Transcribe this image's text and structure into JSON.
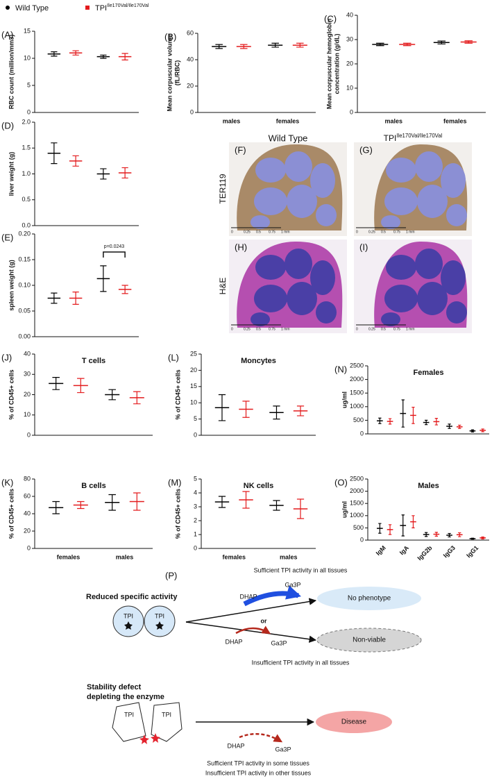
{
  "legend": [
    {
      "name": "Wild Type",
      "color": "#000000"
    },
    {
      "name": "TPI",
      "superscript": "Ile170Val/Ile170Val",
      "color": "#e31a1c"
    }
  ],
  "chart_data": [
    {
      "type": "dot",
      "label": "(A)",
      "ylabel": [
        "RBC count (million/mm3)"
      ],
      "categories": [
        null,
        null
      ],
      "series": [
        {
          "color": "#000000",
          "values": [
            10.8,
            10.3
          ],
          "errors": [
            0.4,
            0.3
          ]
        },
        {
          "color": "#e31a1c",
          "values": [
            11.0,
            10.3
          ],
          "errors": [
            0.4,
            0.6
          ]
        }
      ],
      "ylim": [
        0,
        15
      ],
      "yticks": [
        0,
        5,
        10,
        15
      ]
    },
    {
      "type": "dot",
      "label": "(B)",
      "ylabel": [
        "Mean corpuscular volume",
        "(fL/RBC)"
      ],
      "categories": [
        "males",
        "females"
      ],
      "series": [
        {
          "color": "#000000",
          "values": [
            50,
            51
          ],
          "errors": [
            1.5,
            1.5
          ]
        },
        {
          "color": "#e31a1c",
          "values": [
            50,
            51
          ],
          "errors": [
            1.5,
            1.5
          ]
        }
      ],
      "ylim": [
        0,
        60
      ],
      "yticks": [
        0,
        20,
        40,
        60
      ]
    },
    {
      "type": "dot",
      "label": "(C)",
      "ylabel": [
        "Mean corpuscular hemoglobin",
        "concentration (g/dL)"
      ],
      "categories": [
        "males",
        "females"
      ],
      "series": [
        {
          "color": "#000000",
          "values": [
            28,
            28.8
          ],
          "errors": [
            0.5,
            0.6
          ]
        },
        {
          "color": "#e31a1c",
          "values": [
            28,
            29
          ],
          "errors": [
            0.5,
            0.5
          ]
        }
      ],
      "ylim": [
        0,
        40
      ],
      "yticks": [
        0,
        10,
        20,
        30,
        40
      ]
    },
    {
      "type": "dot",
      "label": "(D)",
      "ylabel": [
        "liver weight (g)"
      ],
      "categories": [
        null,
        null
      ],
      "series": [
        {
          "color": "#000000",
          "values": [
            1.4,
            1.0
          ],
          "errors": [
            0.2,
            0.1
          ]
        },
        {
          "color": "#e31a1c",
          "values": [
            1.25,
            1.02
          ],
          "errors": [
            0.1,
            0.1
          ]
        }
      ],
      "ylim": [
        0,
        2
      ],
      "yticks": [
        {
          "value": 0,
          "label": "0.0"
        },
        {
          "value": 0.5,
          "label": "0.5"
        },
        {
          "value": 1,
          "label": "1.0"
        },
        {
          "value": 1.5,
          "label": "1.5"
        },
        {
          "value": 2,
          "label": "2.0"
        }
      ]
    },
    {
      "type": "dot",
      "label": "(E)",
      "ylabel": [
        "spleen weight (g)"
      ],
      "categories": [
        null,
        null
      ],
      "annotation": "p=0.0243",
      "series": [
        {
          "color": "#000000",
          "values": [
            0.075,
            0.113
          ],
          "errors": [
            0.01,
            0.025
          ]
        },
        {
          "color": "#e31a1c",
          "values": [
            0.075,
            0.092
          ],
          "errors": [
            0.012,
            0.008
          ]
        }
      ],
      "ylim": [
        0,
        0.2
      ],
      "yticks": [
        {
          "value": 0,
          "label": "0.00"
        },
        {
          "value": 0.05,
          "label": "0.05"
        },
        {
          "value": 0.1,
          "label": "0.10"
        },
        {
          "value": 0.15,
          "label": "0.15"
        },
        {
          "value": 0.2,
          "label": "0.20"
        }
      ]
    },
    {
      "type": "dot",
      "label": "(J)",
      "title": "T cells",
      "ylabel": [
        "% of CD45+ cells"
      ],
      "categories": [
        null,
        null
      ],
      "series": [
        {
          "color": "#000000",
          "values": [
            25.5,
            20
          ],
          "errors": [
            3,
            2.5
          ]
        },
        {
          "color": "#e31a1c",
          "values": [
            24.5,
            18.5
          ],
          "errors": [
            3.5,
            3
          ]
        }
      ],
      "ylim": [
        0,
        40
      ],
      "yticks": [
        0,
        10,
        20,
        30,
        40
      ]
    },
    {
      "type": "dot",
      "label": "(K)",
      "title": "B cells",
      "ylabel": [
        "% of CD45+ cells"
      ],
      "categories": [
        "females",
        "males"
      ],
      "series": [
        {
          "color": "#000000",
          "values": [
            47,
            53
          ],
          "errors": [
            7,
            9
          ]
        },
        {
          "color": "#e31a1c",
          "values": [
            50,
            54
          ],
          "errors": [
            4,
            10
          ]
        }
      ],
      "ylim": [
        0,
        80
      ],
      "yticks": [
        0,
        20,
        40,
        60,
        80
      ]
    },
    {
      "type": "dot",
      "label": "(L)",
      "title": "Moncytes",
      "ylabel": [
        "% of CD45+ cells"
      ],
      "categories": [
        null,
        null
      ],
      "series": [
        {
          "color": "#000000",
          "values": [
            8.5,
            7
          ],
          "errors": [
            4,
            2
          ]
        },
        {
          "color": "#e31a1c",
          "values": [
            8,
            7.5
          ],
          "errors": [
            2.5,
            1.5
          ]
        }
      ],
      "ylim": [
        0,
        25
      ],
      "yticks": [
        0,
        5,
        10,
        15,
        20,
        25
      ]
    },
    {
      "type": "dot",
      "label": "(M)",
      "title": "NK cells",
      "ylabel": [
        "% of CD45+ cells"
      ],
      "categories": [
        "females",
        "males"
      ],
      "series": [
        {
          "color": "#000000",
          "values": [
            3.35,
            3.1
          ],
          "errors": [
            0.4,
            0.35
          ]
        },
        {
          "color": "#e31a1c",
          "values": [
            3.5,
            2.85
          ],
          "errors": [
            0.6,
            0.7
          ]
        }
      ],
      "ylim": [
        0,
        5
      ],
      "yticks": [
        0,
        1,
        2,
        3,
        4,
        5
      ]
    },
    {
      "type": "dot",
      "label": "(N)",
      "title": "Females",
      "ylabel": [
        "ug/ml"
      ],
      "categories": [
        null,
        null,
        null,
        null,
        null
      ],
      "series": [
        {
          "color": "#000000",
          "values": [
            480,
            750,
            420,
            280,
            110
          ],
          "errors": [
            100,
            500,
            80,
            80,
            40
          ]
        },
        {
          "color": "#e31a1c",
          "values": [
            460,
            680,
            450,
            260,
            130
          ],
          "errors": [
            100,
            300,
            120,
            60,
            50
          ]
        }
      ],
      "ylim": [
        0,
        2500
      ],
      "yticks": [
        0,
        500,
        1000,
        1500,
        2000,
        2500
      ]
    },
    {
      "type": "dot",
      "label": "(O)",
      "title": "Males",
      "ylabel": [
        "ug/ml"
      ],
      "categories": [
        "IgM",
        "IgA",
        "IgG2b",
        "IgG3",
        "IgG1"
      ],
      "series": [
        {
          "color": "#000000",
          "values": [
            480,
            600,
            230,
            200,
            60
          ],
          "errors": [
            200,
            430,
            80,
            70,
            20
          ]
        },
        {
          "color": "#e31a1c",
          "values": [
            430,
            750,
            240,
            220,
            90
          ],
          "errors": [
            200,
            250,
            80,
            80,
            40
          ]
        }
      ],
      "ylim": [
        0,
        2500
      ],
      "yticks": [
        0,
        500,
        1000,
        1500,
        2000,
        2500
      ]
    }
  ],
  "histology": {
    "columns": [
      "Wild Type",
      {
        "name": "TPI",
        "superscript": "Ile170Val/Ile170Val"
      }
    ],
    "rows": [
      "TER119",
      "H&E"
    ],
    "panels": [
      "(F)",
      "(G)",
      "(H)",
      "(I)"
    ],
    "scale": [
      "0",
      "0.25",
      "0.5",
      "0.75",
      "1 mm"
    ]
  },
  "diagram": {
    "label": "(P)",
    "top": {
      "heading": "Reduced specific activity",
      "enzyme": [
        "TPI",
        "TPI"
      ],
      "note_above": "Sufficient TPI activity in all tissues",
      "substrate_1": "DHAP",
      "product_1": "Ga3P",
      "or": "or",
      "outcome_1": "No phenotype",
      "outcome_2": "Non-viable",
      "substrate_2": "DHAP",
      "product_2": "Ga3P",
      "note_below": "Insufficient TPI activity in all tissues"
    },
    "bottom": {
      "heading": [
        "Stability defect",
        "depleting the enzyme"
      ],
      "enzyme": [
        "TPI",
        "TPI"
      ],
      "outcome": "Disease",
      "substrate": "DHAP",
      "product": "Ga3P",
      "notes": [
        "Sufficient TPI activity in some tissues",
        "Insufficient TPI activity in other tissues"
      ]
    }
  }
}
